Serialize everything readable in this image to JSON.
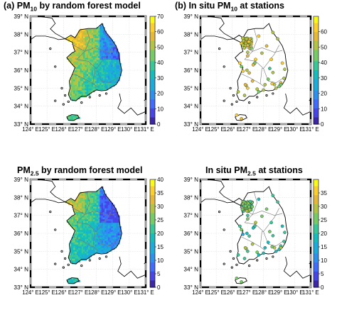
{
  "panels": [
    {
      "id": "a",
      "label": "(a)",
      "title_main": "PM",
      "title_sub": "10",
      "title_rest": "by  random forest  model",
      "type": "gridded",
      "colorbar_ticks": [
        "0",
        "10",
        "20",
        "30",
        "40",
        "50",
        "60",
        "70"
      ],
      "colorbar_range": [
        0,
        70
      ]
    },
    {
      "id": "b",
      "label": "(b)",
      "title_main": "In situ  PM",
      "title_sub": "10",
      "title_rest": "at stations",
      "type": "stations",
      "colorbar_ticks": [
        "0",
        "10",
        "20",
        "30",
        "40",
        "50",
        "60"
      ],
      "colorbar_range": [
        0,
        70
      ]
    },
    {
      "id": "c",
      "label": "",
      "title_main": "PM",
      "title_sub": "2.5",
      "title_rest": "by  random forest  model",
      "type": "gridded",
      "colorbar_ticks": [
        "0",
        "5",
        "10",
        "15",
        "20",
        "25",
        "30",
        "35",
        "40"
      ],
      "colorbar_range": [
        0,
        40
      ]
    },
    {
      "id": "d",
      "label": "",
      "title_main": "In situ  PM",
      "title_sub": "2.5",
      "title_rest": "at stations",
      "type": "stations",
      "colorbar_ticks": [
        "0",
        "5",
        "10",
        "15",
        "20",
        "25",
        "30",
        "35"
      ],
      "colorbar_range": [
        0,
        40
      ]
    }
  ],
  "lat_labels": [
    "33",
    "34",
    "35",
    "36",
    "37",
    "38",
    "39"
  ],
  "lon_labels": [
    "124",
    "125",
    "126",
    "127",
    "128",
    "129",
    "130",
    "131"
  ],
  "lat_suffix": "N",
  "lon_suffix": "E",
  "degree_symbol": "°",
  "colormap": [
    "#3e26a8",
    "#4744e8",
    "#3f6cff",
    "#2b91ef",
    "#1cacdb",
    "#13bebc",
    "#36c897",
    "#75cc64",
    "#b2c442",
    "#e5b937",
    "#fdcf2a",
    "#f9fb15"
  ]
}
